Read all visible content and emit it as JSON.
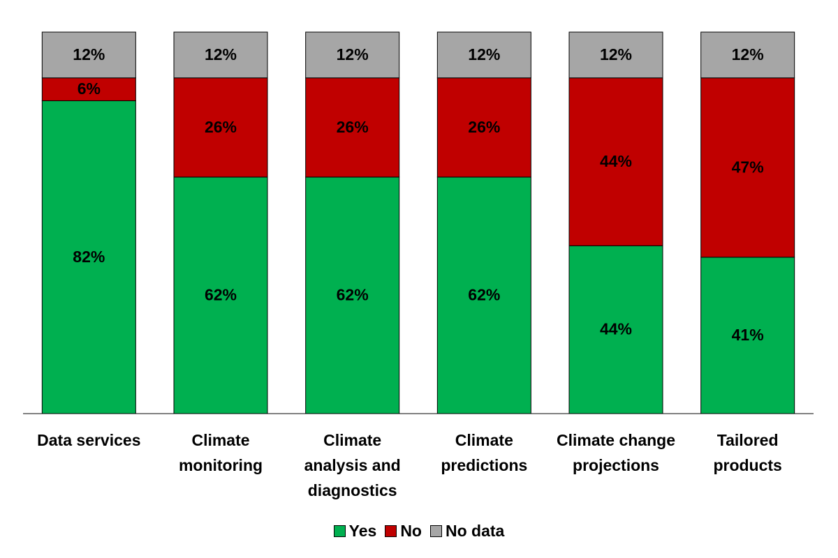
{
  "chart_data": {
    "type": "stacked_bar",
    "categories": [
      "Data services",
      "Climate monitoring",
      "Climate analysis and diagnostics",
      "Climate predictions",
      "Climate change projections",
      "Tailored products"
    ],
    "series": [
      {
        "name": "Yes",
        "color": "#00b050",
        "values": [
          82,
          62,
          62,
          62,
          44,
          41
        ],
        "value_labels": [
          "82%",
          "62%",
          "62%",
          "62%",
          "44%",
          "41%"
        ]
      },
      {
        "name": "No",
        "color": "#c00000",
        "values": [
          6,
          26,
          26,
          26,
          44,
          47
        ],
        "value_labels": [
          "6%",
          "26%",
          "26%",
          "26%",
          "44%",
          "47%"
        ]
      },
      {
        "name": "No data",
        "color": "#a6a6a6",
        "values": [
          12,
          12,
          12,
          12,
          12,
          12
        ],
        "value_labels": [
          "12%",
          "12%",
          "12%",
          "12%",
          "12%",
          "12%"
        ]
      }
    ],
    "ylim": [
      0,
      100
    ]
  }
}
